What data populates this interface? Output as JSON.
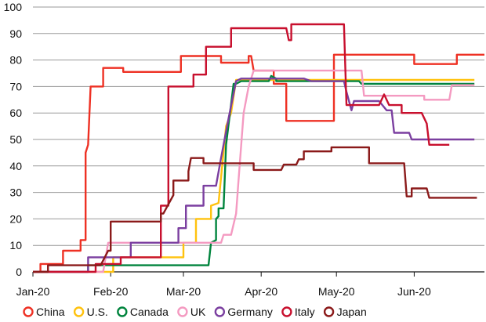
{
  "chart_data": {
    "type": "line",
    "title": "",
    "xlabel": "",
    "ylabel": "",
    "ylim": [
      0,
      100
    ],
    "yticks": [
      "0",
      "10",
      "20",
      "30",
      "40",
      "50",
      "60",
      "70",
      "80",
      "90",
      "100"
    ],
    "xlim": [
      "2020-01-01",
      "2020-06-29"
    ],
    "xticks": [
      {
        "date": "2020-01-01",
        "label": "Jan-20"
      },
      {
        "date": "2020-02-01",
        "label": "Feb-20"
      },
      {
        "date": "2020-03-01",
        "label": "Mar-20"
      },
      {
        "date": "2020-04-01",
        "label": "Apr-20"
      },
      {
        "date": "2020-05-01",
        "label": "May-20"
      },
      {
        "date": "2020-06-01",
        "label": "Jun-20"
      }
    ],
    "grid": "horizontal",
    "legend_position": "bottom",
    "series": [
      {
        "name": "China",
        "color": "#ee3124",
        "points": [
          [
            "2020-01-01",
            0
          ],
          [
            "2020-01-04",
            0
          ],
          [
            "2020-01-04",
            3
          ],
          [
            "2020-01-13",
            3
          ],
          [
            "2020-01-13",
            8
          ],
          [
            "2020-01-20",
            8
          ],
          [
            "2020-01-20",
            12
          ],
          [
            "2020-01-22",
            12
          ],
          [
            "2020-01-22",
            45
          ],
          [
            "2020-01-23",
            48
          ],
          [
            "2020-01-24",
            70
          ],
          [
            "2020-01-29",
            70
          ],
          [
            "2020-01-29",
            77
          ],
          [
            "2020-02-06",
            77
          ],
          [
            "2020-02-06",
            75.5
          ],
          [
            "2020-02-29",
            75.5
          ],
          [
            "2020-02-29",
            81.5
          ],
          [
            "2020-03-16",
            81.5
          ],
          [
            "2020-03-16",
            79
          ],
          [
            "2020-03-27",
            79
          ],
          [
            "2020-03-27",
            81.5
          ],
          [
            "2020-03-28",
            81.5
          ],
          [
            "2020-03-29",
            76
          ],
          [
            "2020-04-06",
            76
          ],
          [
            "2020-04-06",
            71
          ],
          [
            "2020-04-11",
            71
          ],
          [
            "2020-04-11",
            57
          ],
          [
            "2020-04-30",
            57
          ],
          [
            "2020-04-30",
            82
          ],
          [
            "2020-06-01",
            82
          ],
          [
            "2020-06-01",
            78.5
          ],
          [
            "2020-06-18",
            78.5
          ],
          [
            "2020-06-18",
            82
          ],
          [
            "2020-06-29",
            82
          ]
        ]
      },
      {
        "name": "U.S.",
        "color": "#ffc20e",
        "points": [
          [
            "2020-01-01",
            0
          ],
          [
            "2020-02-02",
            0
          ],
          [
            "2020-02-02",
            5.5
          ],
          [
            "2020-03-01",
            5.5
          ],
          [
            "2020-03-01",
            11
          ],
          [
            "2020-03-06",
            11
          ],
          [
            "2020-03-06",
            20
          ],
          [
            "2020-03-12",
            20
          ],
          [
            "2020-03-12",
            25
          ],
          [
            "2020-03-15",
            26
          ],
          [
            "2020-03-18",
            55
          ],
          [
            "2020-03-20",
            60
          ],
          [
            "2020-03-22",
            72.5
          ],
          [
            "2020-06-25",
            72.5
          ]
        ]
      },
      {
        "name": "Canada",
        "color": "#00843d",
        "points": [
          [
            "2020-01-01",
            0
          ],
          [
            "2020-01-23",
            0
          ],
          [
            "2020-01-23",
            2.5
          ],
          [
            "2020-03-11",
            2.5
          ],
          [
            "2020-03-12",
            11
          ],
          [
            "2020-03-14",
            12
          ],
          [
            "2020-03-14",
            20
          ],
          [
            "2020-03-15",
            21
          ],
          [
            "2020-03-15",
            24
          ],
          [
            "2020-03-17",
            24
          ],
          [
            "2020-03-18",
            48
          ],
          [
            "2020-03-21",
            71
          ],
          [
            "2020-03-22",
            71
          ],
          [
            "2020-03-24",
            72
          ],
          [
            "2020-04-04",
            72
          ],
          [
            "2020-04-05",
            74
          ],
          [
            "2020-04-07",
            73
          ],
          [
            "2020-04-07",
            72
          ],
          [
            "2020-05-10",
            72
          ],
          [
            "2020-05-11",
            71
          ],
          [
            "2020-06-25",
            71
          ]
        ]
      },
      {
        "name": "UK",
        "color": "#f49ac1",
        "points": [
          [
            "2020-01-01",
            0
          ],
          [
            "2020-01-29",
            0
          ],
          [
            "2020-01-31",
            11
          ],
          [
            "2020-03-16",
            11
          ],
          [
            "2020-03-17",
            14
          ],
          [
            "2020-03-20",
            14
          ],
          [
            "2020-03-22",
            22
          ],
          [
            "2020-03-23",
            35
          ],
          [
            "2020-03-25",
            60
          ],
          [
            "2020-03-27",
            70
          ],
          [
            "2020-03-29",
            76
          ],
          [
            "2020-05-11",
            76
          ],
          [
            "2020-05-12",
            66.5
          ],
          [
            "2020-06-05",
            66.5
          ],
          [
            "2020-06-05",
            65
          ],
          [
            "2020-06-15",
            65
          ],
          [
            "2020-06-16",
            70.5
          ],
          [
            "2020-06-25",
            70.5
          ]
        ]
      },
      {
        "name": "Germany",
        "color": "#7b3fa0",
        "points": [
          [
            "2020-01-01",
            0
          ],
          [
            "2020-01-23",
            0
          ],
          [
            "2020-01-23",
            5.5
          ],
          [
            "2020-02-09",
            5.5
          ],
          [
            "2020-02-09",
            11
          ],
          [
            "2020-02-28",
            11
          ],
          [
            "2020-02-28",
            16.5
          ],
          [
            "2020-03-02",
            16.5
          ],
          [
            "2020-03-02",
            25
          ],
          [
            "2020-03-09",
            25
          ],
          [
            "2020-03-09",
            32.5
          ],
          [
            "2020-03-14",
            32.5
          ],
          [
            "2020-03-16",
            43
          ],
          [
            "2020-03-19",
            58
          ],
          [
            "2020-03-22",
            72
          ],
          [
            "2020-03-24",
            73
          ],
          [
            "2020-04-18",
            73
          ],
          [
            "2020-04-21",
            72
          ],
          [
            "2020-05-04",
            72
          ],
          [
            "2020-05-05",
            68
          ],
          [
            "2020-05-07",
            61
          ],
          [
            "2020-05-08",
            64.5
          ],
          [
            "2020-05-18",
            64.5
          ],
          [
            "2020-05-21",
            61
          ],
          [
            "2020-05-23",
            61
          ],
          [
            "2020-05-24",
            52.5
          ],
          [
            "2020-05-30",
            52.5
          ],
          [
            "2020-05-31",
            50
          ],
          [
            "2020-06-25",
            50
          ]
        ]
      },
      {
        "name": "Italy",
        "color": "#c8102e",
        "points": [
          [
            "2020-01-01",
            0
          ],
          [
            "2020-01-26",
            0
          ],
          [
            "2020-01-26",
            3
          ],
          [
            "2020-02-05",
            3
          ],
          [
            "2020-02-05",
            5.5
          ],
          [
            "2020-02-21",
            5.5
          ],
          [
            "2020-02-21",
            25
          ],
          [
            "2020-02-24",
            25
          ],
          [
            "2020-02-24",
            70
          ],
          [
            "2020-03-05",
            70
          ],
          [
            "2020-03-05",
            74.5
          ],
          [
            "2020-03-10",
            74.5
          ],
          [
            "2020-03-10",
            85
          ],
          [
            "2020-03-20",
            85
          ],
          [
            "2020-03-20",
            92
          ],
          [
            "2020-04-11",
            92
          ],
          [
            "2020-04-12",
            87.5
          ],
          [
            "2020-04-13",
            87.5
          ],
          [
            "2020-04-13",
            93.5
          ],
          [
            "2020-05-04",
            93.5
          ],
          [
            "2020-05-05",
            63
          ],
          [
            "2020-05-18",
            63
          ],
          [
            "2020-05-20",
            67
          ],
          [
            "2020-05-22",
            63
          ],
          [
            "2020-05-27",
            63
          ],
          [
            "2020-05-27",
            60
          ],
          [
            "2020-06-04",
            60
          ],
          [
            "2020-06-06",
            56
          ],
          [
            "2020-06-07",
            48
          ],
          [
            "2020-06-15",
            48
          ]
        ]
      },
      {
        "name": "Japan",
        "color": "#8b1a1a",
        "points": [
          [
            "2020-01-01",
            0
          ],
          [
            "2020-01-07",
            0
          ],
          [
            "2020-01-07",
            2.5
          ],
          [
            "2020-01-28",
            2.5
          ],
          [
            "2020-01-31",
            8
          ],
          [
            "2020-02-01",
            8
          ],
          [
            "2020-02-01",
            19
          ],
          [
            "2020-02-21",
            19
          ],
          [
            "2020-02-21",
            22
          ],
          [
            "2020-02-22",
            22
          ],
          [
            "2020-02-26",
            29
          ],
          [
            "2020-02-26",
            34.5
          ],
          [
            "2020-03-03",
            34.5
          ],
          [
            "2020-03-03",
            38
          ],
          [
            "2020-03-04",
            43
          ],
          [
            "2020-03-09",
            43
          ],
          [
            "2020-03-09",
            41
          ],
          [
            "2020-03-29",
            41
          ],
          [
            "2020-03-29",
            38.5
          ],
          [
            "2020-04-09",
            38.5
          ],
          [
            "2020-04-10",
            40.5
          ],
          [
            "2020-04-15",
            40.5
          ],
          [
            "2020-04-16",
            42.5
          ],
          [
            "2020-04-18",
            42.5
          ],
          [
            "2020-04-18",
            45.5
          ],
          [
            "2020-04-22",
            45.5
          ],
          [
            "2020-04-23",
            45.5
          ],
          [
            "2020-04-29",
            45.5
          ],
          [
            "2020-04-29",
            47
          ],
          [
            "2020-05-14",
            47
          ],
          [
            "2020-05-14",
            41
          ],
          [
            "2020-05-28",
            41
          ],
          [
            "2020-05-29",
            28.5
          ],
          [
            "2020-05-31",
            28.5
          ],
          [
            "2020-05-31",
            31.5
          ],
          [
            "2020-06-06",
            31.5
          ],
          [
            "2020-06-07",
            28
          ],
          [
            "2020-06-26",
            28
          ]
        ]
      }
    ]
  }
}
